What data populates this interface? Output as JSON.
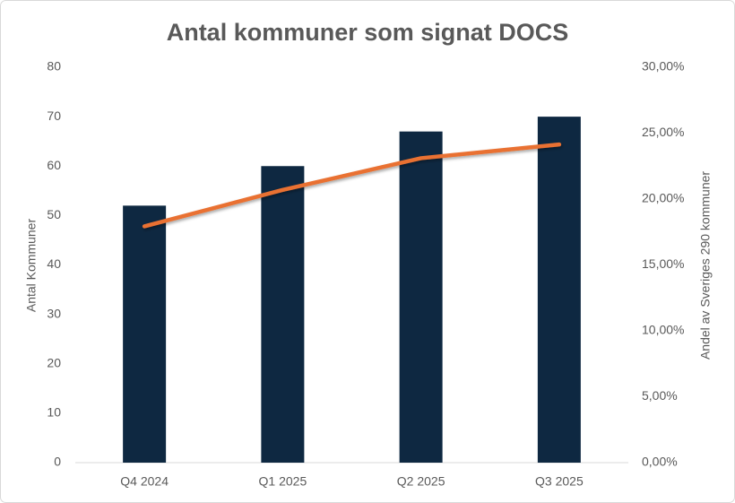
{
  "chart_data": {
    "type": "bar-line",
    "title": "Antal kommuner som signat DOCS",
    "y_label": "Antal Kommuner",
    "y2_label": "Andel av Sveriges 290 kommuner",
    "categories": [
      "Q4 2024",
      "Q1 2025",
      "Q2 2025",
      "Q3 2025"
    ],
    "series": [
      {
        "name": "Antal kommuner",
        "type": "bar",
        "color": "#0e2841",
        "values": [
          52,
          60,
          67,
          70
        ]
      },
      {
        "name": "Andel",
        "type": "line",
        "axis": "y2",
        "color": "#e97132",
        "values": [
          17.93,
          20.69,
          23.1,
          24.14
        ]
      }
    ],
    "ylim": [
      0,
      80
    ],
    "yticks": [
      0,
      10,
      20,
      30,
      40,
      50,
      60,
      70,
      80
    ],
    "y2lim": [
      0,
      30
    ],
    "y2ticks": [
      {
        "value": 0,
        "label": "0,00%"
      },
      {
        "value": 5,
        "label": "5,00%"
      },
      {
        "value": 10,
        "label": "10,00%"
      },
      {
        "value": 15,
        "label": "15,00%"
      },
      {
        "value": 20,
        "label": "20,00%"
      },
      {
        "value": 25,
        "label": "25,00%"
      },
      {
        "value": 30,
        "label": "30,00%"
      }
    ],
    "grid": false
  }
}
